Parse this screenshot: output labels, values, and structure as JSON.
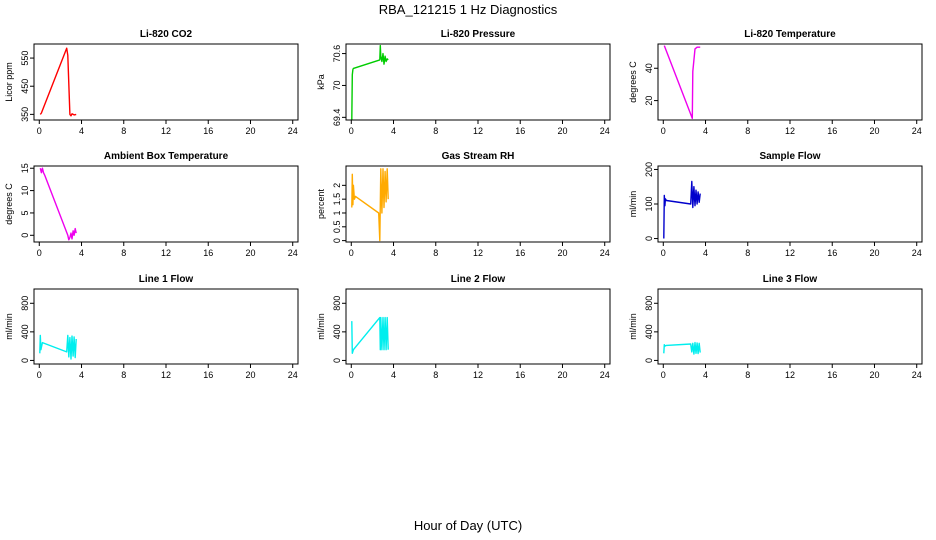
{
  "title": "RBA_121215  1 Hz Diagnostics",
  "xlabel": "Hour of Day (UTC)",
  "x_ticks": [
    "0",
    "4",
    "8",
    "12",
    "16",
    "20",
    "24"
  ],
  "chart_data": [
    {
      "type": "line",
      "title": "Li-820 CO2",
      "ylabel": "Licor ppm",
      "color": "#ff0000",
      "xlim": [
        -0.5,
        24.5
      ],
      "ylim": [
        330,
        600
      ],
      "y_ticks": [
        350,
        450,
        550
      ],
      "x": [
        0.1,
        0.2,
        2.6,
        2.7,
        2.9,
        3.0,
        3.1,
        3.3,
        3.5
      ],
      "y": [
        350,
        355,
        585,
        560,
        350,
        345,
        352,
        348,
        350
      ]
    },
    {
      "type": "line",
      "title": "Li-820 Pressure",
      "ylabel": "kPa",
      "color": "#00cc00",
      "xlim": [
        -0.5,
        24.5
      ],
      "ylim": [
        69.35,
        70.78
      ],
      "y_ticks": [
        69.4,
        70.0,
        70.6
      ],
      "x": [
        0.05,
        0.1,
        0.15,
        0.2,
        2.7,
        2.75,
        2.8,
        2.9,
        3.0,
        3.1,
        3.2,
        3.3,
        3.4,
        3.5
      ],
      "y": [
        69.36,
        70.2,
        70.3,
        70.32,
        70.48,
        70.75,
        70.55,
        70.45,
        70.6,
        70.4,
        70.55,
        70.45,
        70.5,
        70.48
      ]
    },
    {
      "type": "line",
      "title": "Li-820 Temperature",
      "ylabel": "degrees C",
      "color": "#ee00ee",
      "xlim": [
        -0.5,
        24.5
      ],
      "ylim": [
        8,
        55
      ],
      "y_ticks": [
        20,
        40
      ],
      "x": [
        0.1,
        2.75,
        2.8,
        3.0,
        3.2,
        3.5
      ],
      "y": [
        54,
        9,
        38,
        52,
        53,
        53
      ]
    },
    {
      "type": "line",
      "title": "Ambient Box Temperature",
      "ylabel": "degrees C",
      "color": "#ee00ee",
      "xlim": [
        -0.5,
        24.5
      ],
      "ylim": [
        -1.5,
        15.5
      ],
      "y_ticks": [
        0,
        5,
        10,
        15
      ],
      "x": [
        0.1,
        0.2,
        0.3,
        0.4,
        0.5,
        2.7,
        2.8,
        2.9,
        3.0,
        3.1,
        3.2,
        3.3,
        3.4,
        3.5
      ],
      "y": [
        15,
        14,
        15,
        14,
        13.5,
        0,
        -1,
        -0.5,
        0.5,
        -0.8,
        1,
        0,
        1.5,
        0.5
      ]
    },
    {
      "type": "line",
      "title": "Gas Stream RH",
      "ylabel": "percent",
      "color": "#ffaa00",
      "xlim": [
        -0.5,
        24.5
      ],
      "ylim": [
        -0.05,
        2.7
      ],
      "y_ticks": [
        0.0,
        0.5,
        1.0,
        1.5,
        2.0
      ],
      "x": [
        0.05,
        0.1,
        0.15,
        0.2,
        0.3,
        0.4,
        2.6,
        2.7,
        2.8,
        2.9,
        3.0,
        3.1,
        3.2,
        3.3,
        3.4,
        3.5
      ],
      "y": [
        1.2,
        2.4,
        1.3,
        2.0,
        1.5,
        1.6,
        1.0,
        0.0,
        2.6,
        1.0,
        2.6,
        1.2,
        2.5,
        1.4,
        2.6,
        1.5
      ]
    },
    {
      "type": "line",
      "title": "Sample Flow",
      "ylabel": "ml/min",
      "color": "#0000cc",
      "xlim": [
        -0.5,
        24.5
      ],
      "ylim": [
        -10,
        210
      ],
      "y_ticks": [
        0,
        100,
        200
      ],
      "x": [
        0.05,
        0.1,
        0.15,
        0.2,
        0.3,
        2.6,
        2.7,
        2.8,
        2.9,
        3.0,
        3.1,
        3.2,
        3.3,
        3.4,
        3.5
      ],
      "y": [
        0,
        125,
        95,
        115,
        110,
        100,
        165,
        90,
        150,
        95,
        140,
        100,
        135,
        105,
        130
      ]
    },
    {
      "type": "line",
      "title": "Line 1 Flow",
      "ylabel": "ml/min",
      "color": "#00eeee",
      "xlim": [
        -0.5,
        24.5
      ],
      "ylim": [
        -50,
        1000
      ],
      "y_ticks": [
        0,
        400,
        800
      ],
      "x": [
        0.05,
        0.1,
        0.15,
        0.3,
        2.6,
        2.7,
        2.8,
        2.9,
        3.0,
        3.1,
        3.2,
        3.3,
        3.4,
        3.5
      ],
      "y": [
        100,
        350,
        150,
        250,
        120,
        350,
        50,
        320,
        20,
        340,
        60,
        330,
        40,
        300
      ]
    },
    {
      "type": "line",
      "title": "Line 2 Flow",
      "ylabel": "ml/min",
      "color": "#00eeee",
      "xlim": [
        -0.5,
        24.5
      ],
      "ylim": [
        -50,
        1000
      ],
      "y_ticks": [
        0,
        400,
        800
      ],
      "x": [
        0.05,
        0.1,
        0.2,
        2.7,
        2.75,
        2.8,
        2.9,
        3.0,
        3.1,
        3.2,
        3.3,
        3.4,
        3.5
      ],
      "y": [
        550,
        100,
        150,
        600,
        150,
        600,
        150,
        600,
        150,
        600,
        150,
        600,
        150
      ]
    },
    {
      "type": "line",
      "title": "Line 3 Flow",
      "ylabel": "ml/min",
      "color": "#00eeee",
      "xlim": [
        -0.5,
        24.5
      ],
      "ylim": [
        -50,
        1000
      ],
      "y_ticks": [
        0,
        400,
        800
      ],
      "x": [
        0.05,
        0.1,
        0.15,
        0.3,
        2.6,
        2.7,
        2.8,
        2.9,
        3.0,
        3.1,
        3.2,
        3.3,
        3.4,
        3.5
      ],
      "y": [
        100,
        220,
        200,
        210,
        230,
        120,
        240,
        90,
        250,
        100,
        245,
        95,
        240,
        110
      ]
    }
  ]
}
